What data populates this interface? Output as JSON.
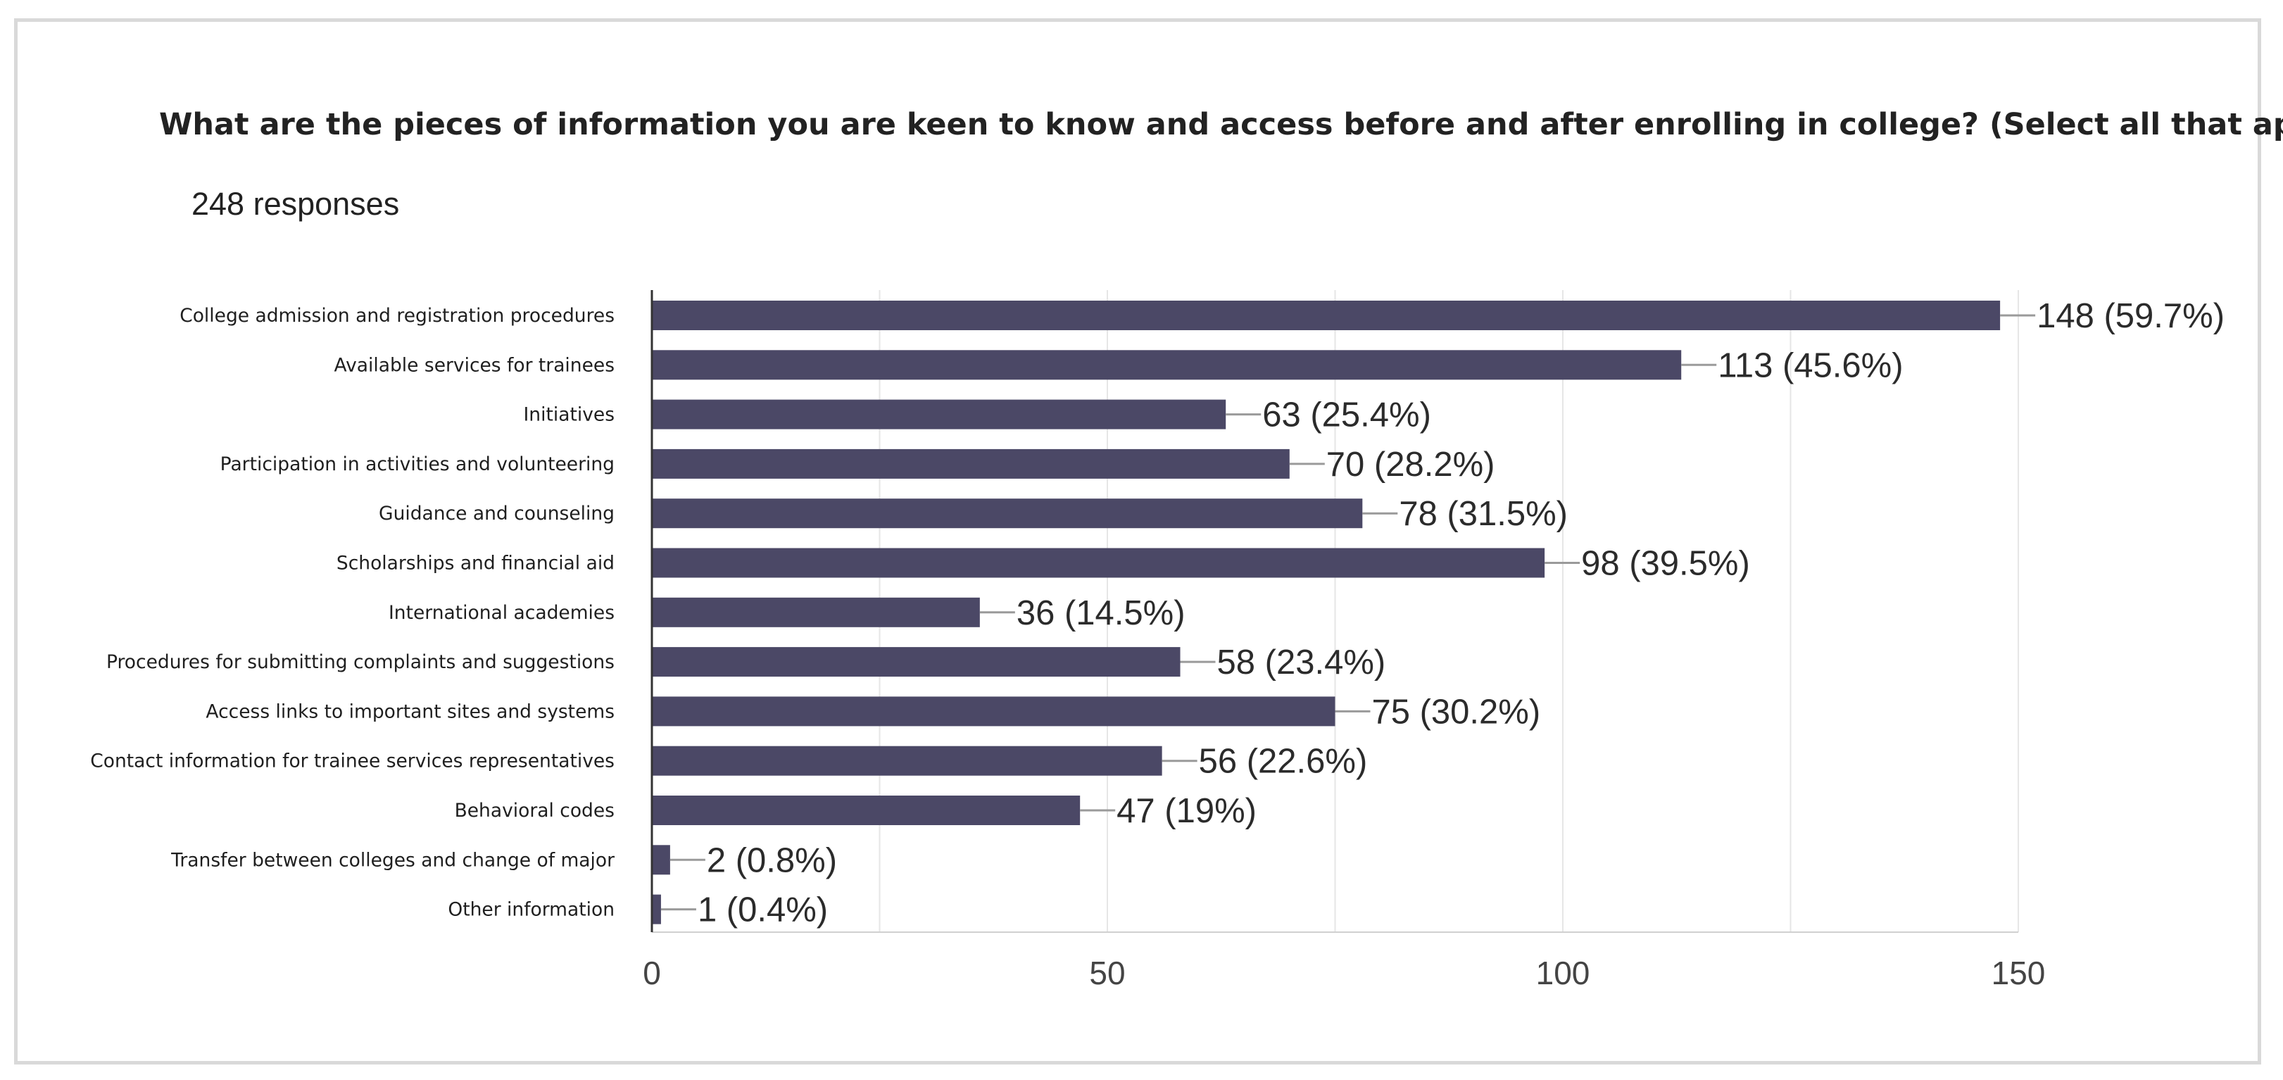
{
  "chart_data": {
    "type": "bar",
    "orientation": "horizontal",
    "title": "What are the pieces of information you are keen to know and access before and after enrolling in college? (Select all that apply)",
    "subtitle": "248 responses",
    "categories": [
      "College admission and registration procedures",
      "Available services for trainees",
      "Initiatives",
      "Participation in activities and volunteering",
      "Guidance and counseling",
      "Scholarships and financial aid",
      "International academies",
      "Procedures for submitting complaints and suggestions",
      "Access links to important sites and systems",
      "Contact information for trainee services representatives",
      "Behavioral codes",
      "Transfer between colleges and change of major",
      "Other information"
    ],
    "values": [
      148,
      113,
      63,
      70,
      78,
      98,
      36,
      58,
      75,
      56,
      47,
      2,
      1
    ],
    "data_labels": [
      "148 (59.7%)",
      "113 (45.6%)",
      "63 (25.4%)",
      "70 (28.2%)",
      "78 (31.5%)",
      "98 (39.5%)",
      "36 (14.5%)",
      "58 (23.4%)",
      "75 (30.2%)",
      "56 (22.6%)",
      "47 (19%)",
      "2 (0.8%)",
      "1 (0.4%)"
    ],
    "xlim": [
      0,
      150
    ],
    "xticks": [
      0,
      50,
      100,
      150
    ],
    "xtick_labels": [
      "0",
      "50",
      "100",
      "150"
    ],
    "grid": true,
    "bar_color": "#4b4866",
    "xlabel": "",
    "ylabel": ""
  }
}
